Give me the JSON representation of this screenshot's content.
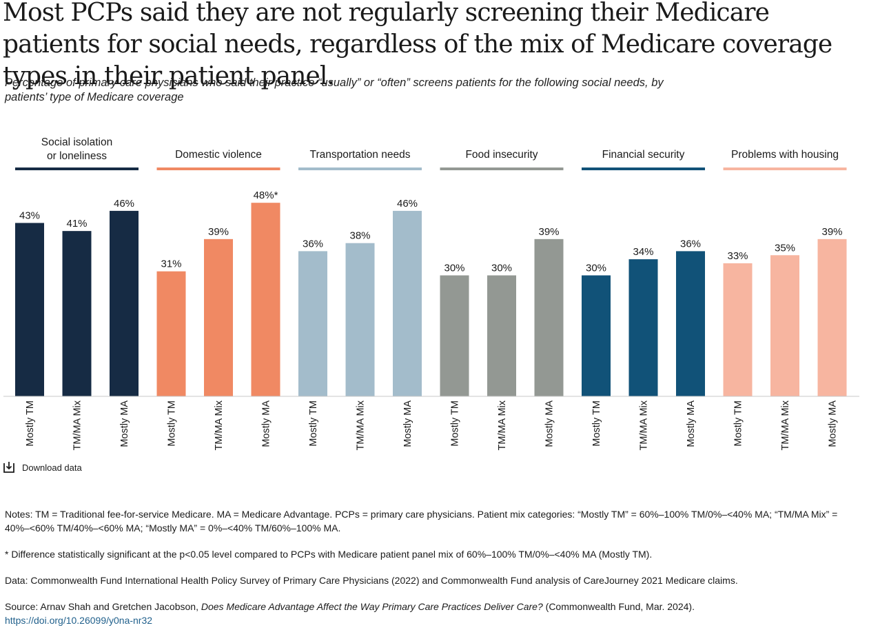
{
  "title": "Most PCPs said they are not regularly screening their Medicare patients for social needs, regardless of the mix of Medicare coverage types in their patient panel.",
  "subtitle": "Percentage of primary care physicians who said their practice “usually” or “often” screens patients for the following social needs, by patients’ type of Medicare coverage",
  "chart_data": {
    "type": "bar",
    "categories": [
      "Mostly TM",
      "TM/MA Mix",
      "Mostly MA"
    ],
    "ylim": [
      0,
      60
    ],
    "grid": false,
    "groups": [
      {
        "name_lines": [
          "Social isolation",
          "or loneliness"
        ],
        "color": "#162b44",
        "values": [
          43,
          41,
          46
        ],
        "labels": [
          "43%",
          "41%",
          "46%"
        ]
      },
      {
        "name_lines": [
          "Domestic violence"
        ],
        "color": "#f08963",
        "values": [
          31,
          39,
          48
        ],
        "labels": [
          "31%",
          "39%",
          "48%*"
        ]
      },
      {
        "name_lines": [
          "Transportation needs"
        ],
        "color": "#a3bccb",
        "values": [
          36,
          38,
          46
        ],
        "labels": [
          "36%",
          "38%",
          "46%"
        ]
      },
      {
        "name_lines": [
          "Food insecurity"
        ],
        "color": "#939893",
        "values": [
          30,
          30,
          39
        ],
        "labels": [
          "30%",
          "30%",
          "39%"
        ]
      },
      {
        "name_lines": [
          "Financial security"
        ],
        "color": "#115278",
        "values": [
          30,
          34,
          36
        ],
        "labels": [
          "30%",
          "34%",
          "36%"
        ]
      },
      {
        "name_lines": [
          "Problems with housing"
        ],
        "color": "#f7b5a0",
        "values": [
          33,
          35,
          39
        ],
        "labels": [
          "33%",
          "35%",
          "39%"
        ]
      }
    ]
  },
  "download_label": "Download data",
  "notes": "Notes: TM = Traditional fee-for-service Medicare. MA = Medicare Advantage. PCPs = primary care physicians. Patient mix categories: “Mostly TM” = 60%–100% TM/0%–<40% MA; “TM/MA Mix” = 40%–<60% TM/40%–<60% MA; “Mostly MA” = 0%–<40% TM/60%–100% MA.",
  "footnote": "* Difference statistically significant at the p<0.05 level compared to PCPs with Medicare patient panel mix of 60%–100% TM/0%–<40% MA (Mostly TM).",
  "data_source": "Data: Commonwealth Fund International Health Policy Survey of Primary Care Physicians (2022) and Commonwealth Fund analysis of CareJourney 2021 Medicare claims.",
  "source": {
    "prefix": "Source: Arnav Shah and Gretchen Jacobson, ",
    "title": "Does Medicare Advantage Affect the Way Primary Care Practices Deliver Care?",
    "suffix": " (Commonwealth Fund, Mar. 2024).",
    "link": "https://doi.org/10.26099/y0na-nr32"
  }
}
